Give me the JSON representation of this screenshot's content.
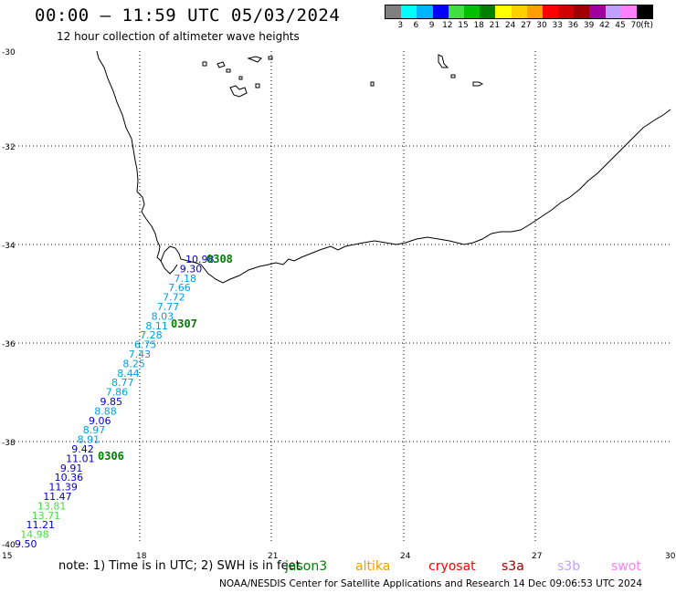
{
  "header": {
    "title": "00:00 – 11:59 UTC 05/03/2024",
    "subtitle": "12 hour collection of altimeter wave heights"
  },
  "legend": {
    "unit": "(ft)",
    "colors": [
      "#808080",
      "#00ffff",
      "#00b4ff",
      "#0000ff",
      "#40e040",
      "#00c000",
      "#008000",
      "#ffff00",
      "#ffd000",
      "#ffa000",
      "#ff0000",
      "#d00000",
      "#a00000",
      "#a000a0",
      "#c0a0ff",
      "#ff80ff",
      "#000000"
    ],
    "labels": [
      "3",
      "6",
      "9",
      "12",
      "15",
      "18",
      "21",
      "24",
      "27",
      "30",
      "33",
      "36",
      "39",
      "42",
      "45",
      "70"
    ]
  },
  "axes": {
    "x_ticks": [
      "15",
      "18",
      "21",
      "24",
      "27",
      "30"
    ],
    "y_ticks": [
      "-30",
      "-32",
      "-34",
      "-36",
      "-38",
      "-40"
    ]
  },
  "track": {
    "points": [
      {
        "text": "10.98",
        "color": "#0000cc"
      },
      {
        "text": "9.30",
        "color": "#0000cc"
      },
      {
        "text": "7.18",
        "color": "#00a0e0"
      },
      {
        "text": "7.66",
        "color": "#00a0e0"
      },
      {
        "text": "7.72",
        "color": "#00a0e0"
      },
      {
        "text": "7.77",
        "color": "#00a0e0"
      },
      {
        "text": "8.03",
        "color": "#00a0e0"
      },
      {
        "text": "8.11",
        "color": "#00a0e0"
      },
      {
        "text": "7.28",
        "color": "#00a0e0"
      },
      {
        "text": "6.75",
        "color": "#00a0e0"
      },
      {
        "text": "7.43",
        "color": "#00a0e0"
      },
      {
        "text": "8.25",
        "color": "#00a0e0"
      },
      {
        "text": "8.44",
        "color": "#00a0e0"
      },
      {
        "text": "8.77",
        "color": "#00a0e0"
      },
      {
        "text": "7.86",
        "color": "#00a0e0"
      },
      {
        "text": "9.85",
        "color": "#0000cc"
      },
      {
        "text": "8.88",
        "color": "#00a0e0"
      },
      {
        "text": "9.06",
        "color": "#0000cc"
      },
      {
        "text": "8.97",
        "color": "#00a0e0"
      },
      {
        "text": "8.91",
        "color": "#00a0e0"
      },
      {
        "text": "9.42",
        "color": "#0000cc"
      },
      {
        "text": "11.01",
        "color": "#0000cc"
      },
      {
        "text": "9.91",
        "color": "#0000cc"
      },
      {
        "text": "10.36",
        "color": "#0000cc"
      },
      {
        "text": "11.39",
        "color": "#0000cc"
      },
      {
        "text": "11.47",
        "color": "#0000cc"
      },
      {
        "text": "13.81",
        "color": "#40e040"
      },
      {
        "text": "13.71",
        "color": "#40e040"
      },
      {
        "text": "11.21",
        "color": "#0000cc"
      },
      {
        "text": "14.98",
        "color": "#40e040"
      },
      {
        "text": "9.50",
        "color": "#0000cc"
      }
    ],
    "time_labels": [
      "0308",
      "0307",
      "0306"
    ],
    "time_color": "#008000"
  },
  "note": "note: 1) Time is in UTC; 2) SWH is in feet",
  "satellites": [
    {
      "name": "jason3",
      "color": "#008000"
    },
    {
      "name": "altika",
      "color": "#ff9900"
    },
    {
      "name": "cryosat",
      "color": "#ff0000"
    },
    {
      "name": "s3a",
      "color": "#a00000"
    },
    {
      "name": "s3b",
      "color": "#c0a0ff"
    },
    {
      "name": "swot",
      "color": "#ff80ff"
    }
  ],
  "footer": "NOAA/NESDIS Center for Satellite Applications and Research   14 Dec 09:06:53 UTC 2024"
}
